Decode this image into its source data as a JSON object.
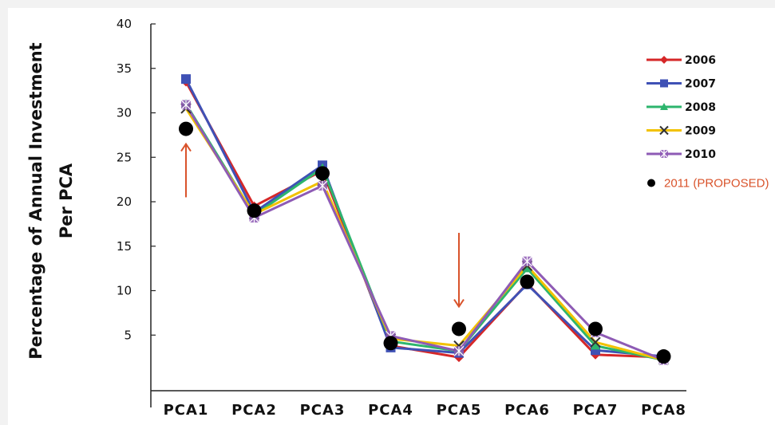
{
  "chart_data": {
    "type": "line",
    "title": "",
    "xlabel": "",
    "ylabel": "Percentage of Annual Investment Per PCA",
    "ylabel_lines": [
      "Percentage of Annual Investment",
      "Per PCA"
    ],
    "categories": [
      "PCA1",
      "PCA2",
      "PCA3",
      "PCA4",
      "PCA5",
      "PCA6",
      "PCA7",
      "PCA8"
    ],
    "yticks": [
      "5",
      "10",
      "15",
      "20",
      "25",
      "30",
      "35",
      "40"
    ],
    "ylim": [
      0,
      40
    ],
    "grid": false,
    "legend_position": "right",
    "series": [
      {
        "name": "2006",
        "color": "#d62728",
        "marker": "diamond",
        "values": [
          33.5,
          19.5,
          23.5,
          3.8,
          2.5,
          10.8,
          2.8,
          2.5
        ]
      },
      {
        "name": "2007",
        "color": "#3f51b5",
        "marker": "square",
        "values": [
          33.8,
          18.8,
          24.1,
          3.6,
          3.0,
          10.7,
          3.3,
          2.6
        ]
      },
      {
        "name": "2008",
        "color": "#2db56d",
        "marker": "triangle",
        "values": [
          31.0,
          18.5,
          23.8,
          4.3,
          3.2,
          12.5,
          3.8,
          2.2
        ]
      },
      {
        "name": "2009",
        "color": "#f2c200",
        "marker": "x",
        "values": [
          30.5,
          18.6,
          22.3,
          4.6,
          3.8,
          12.8,
          4.2,
          2.2
        ]
      },
      {
        "name": "2010",
        "color": "#8e5bb5",
        "marker": "asterisk",
        "values": [
          30.9,
          18.2,
          21.8,
          4.9,
          3.2,
          13.3,
          5.3,
          2.2
        ]
      },
      {
        "name": "2011 (PROPOSED)",
        "color": "#000000",
        "label_color": "#d9532b",
        "marker": "dot",
        "line": false,
        "values": [
          28.2,
          19.0,
          23.2,
          4.1,
          5.7,
          11.0,
          5.7,
          2.6
        ]
      }
    ],
    "annotations": [
      {
        "type": "arrow",
        "direction": "up",
        "color": "#d9532b",
        "category": "PCA1",
        "from": 20.5,
        "to": 26.5
      },
      {
        "type": "arrow",
        "direction": "down",
        "color": "#d9532b",
        "category": "PCA5",
        "from": 16.5,
        "to": 8.2
      }
    ]
  }
}
